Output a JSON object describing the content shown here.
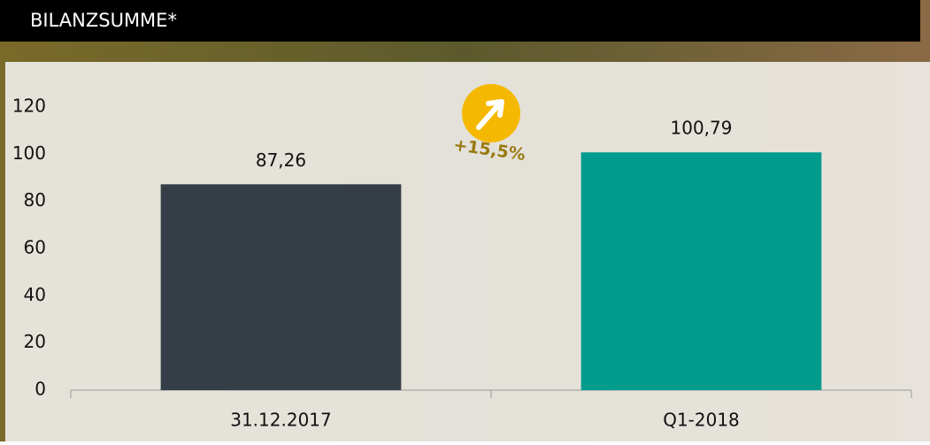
{
  "chart_data": {
    "type": "bar",
    "title": "BILANZSUMME*",
    "categories": [
      "31.12.2017",
      "Q1-2018"
    ],
    "series": [
      {
        "values": [
          87.26,
          100.79
        ],
        "value_labels": [
          "87,26",
          "100,79"
        ],
        "colors": [
          "#353d47",
          "#009b8d"
        ]
      }
    ],
    "annotation": "+15,5%",
    "ylim": [
      0,
      120
    ],
    "yticks": [
      0,
      20,
      40,
      60,
      80,
      100,
      120
    ],
    "grid": false
  }
}
